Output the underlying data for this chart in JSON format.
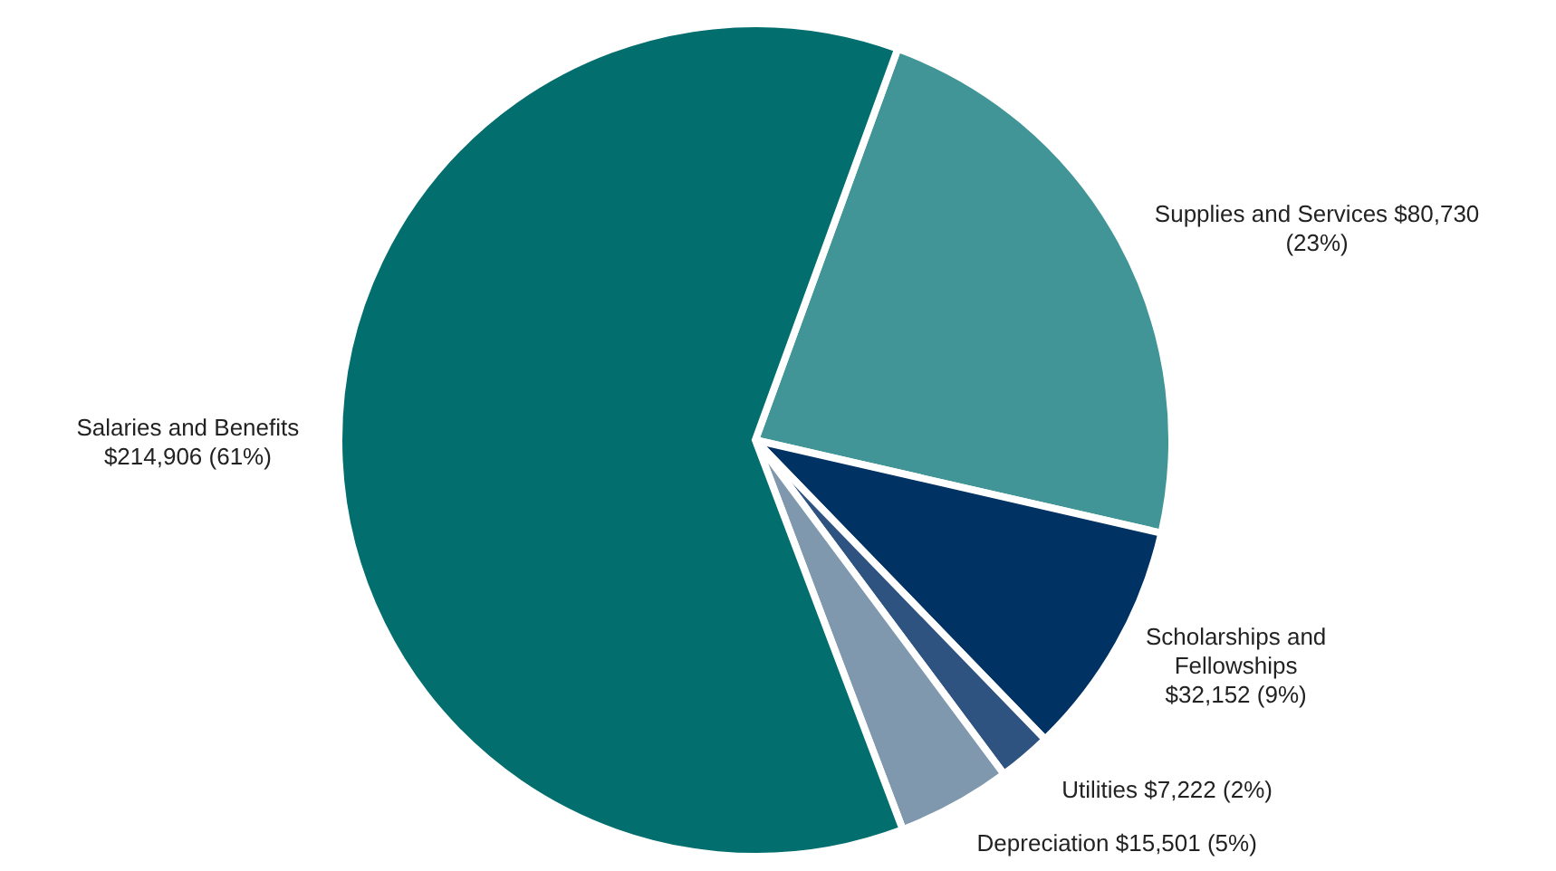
{
  "chart_data": {
    "type": "pie",
    "categories": [
      "Supplies and Services",
      "Scholarships and Fellowships",
      "Utilities",
      "Depreciation",
      "Salaries and Benefits"
    ],
    "values": [
      80730,
      32152,
      7222,
      15501,
      214906
    ],
    "colors": [
      "#419596",
      "#003263",
      "#2e5380",
      "#7f98ae",
      "#036e6e"
    ],
    "value_labels": [
      "$80,730 (23%)",
      "$32,152 (9%)",
      "$7,222 (2%)",
      "$15,501 (5%)",
      "$214,906 (61%)"
    ],
    "legend": false
  }
}
